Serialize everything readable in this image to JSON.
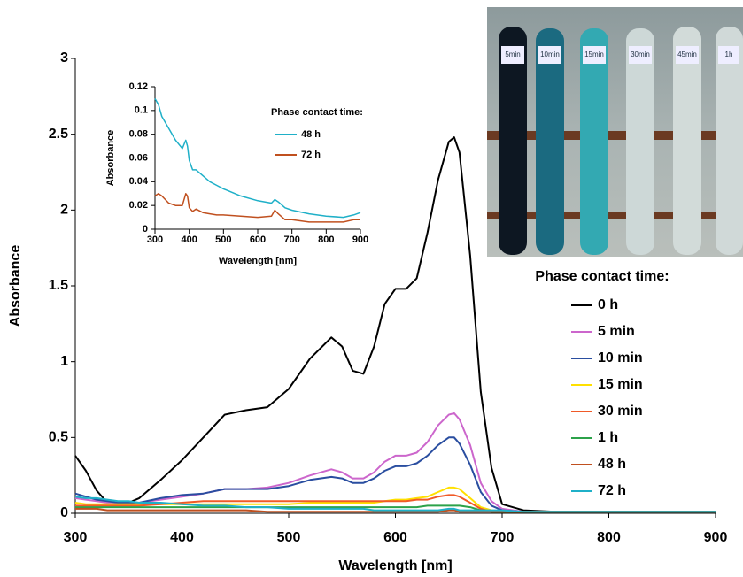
{
  "chart_data": [
    {
      "type": "line",
      "x_label": "Wavelength [nm]",
      "y_label": "Absorbance",
      "legend_title": "Phase contact time:",
      "x": [
        300,
        310,
        320,
        330,
        340,
        350,
        360,
        380,
        400,
        420,
        440,
        460,
        480,
        500,
        520,
        540,
        550,
        560,
        570,
        580,
        590,
        600,
        610,
        620,
        630,
        640,
        650,
        655,
        660,
        670,
        680,
        690,
        700,
        720,
        750,
        800,
        850,
        900
      ],
      "xlim": [
        300,
        900
      ],
      "xticks": [
        300,
        400,
        500,
        600,
        700,
        800,
        900
      ],
      "ylim": [
        0,
        3
      ],
      "yticks": [
        0,
        0.5,
        1,
        1.5,
        2,
        2.5,
        3
      ],
      "series": [
        {
          "name": "0 h",
          "color": "#000000",
          "values": [
            0.38,
            0.28,
            0.15,
            0.07,
            0.06,
            0.07,
            0.1,
            0.22,
            0.35,
            0.5,
            0.65,
            0.68,
            0.7,
            0.82,
            1.02,
            1.16,
            1.1,
            0.94,
            0.92,
            1.1,
            1.38,
            1.48,
            1.48,
            1.55,
            1.85,
            2.2,
            2.45,
            2.48,
            2.38,
            1.7,
            0.8,
            0.3,
            0.06,
            0.02,
            0.01,
            0.01,
            0.01,
            0.01
          ]
        },
        {
          "name": "5 min",
          "color": "#cc66cc",
          "values": [
            0.1,
            0.09,
            0.08,
            0.07,
            0.07,
            0.07,
            0.07,
            0.09,
            0.11,
            0.13,
            0.16,
            0.16,
            0.17,
            0.2,
            0.25,
            0.29,
            0.27,
            0.23,
            0.23,
            0.27,
            0.34,
            0.38,
            0.38,
            0.4,
            0.47,
            0.58,
            0.65,
            0.66,
            0.62,
            0.45,
            0.2,
            0.08,
            0.03,
            0.01,
            0.01,
            0.01,
            0.01,
            0.01
          ]
        },
        {
          "name": "10 min",
          "color": "#2a4ea0",
          "values": [
            0.13,
            0.11,
            0.09,
            0.08,
            0.07,
            0.07,
            0.07,
            0.1,
            0.12,
            0.13,
            0.16,
            0.16,
            0.16,
            0.18,
            0.22,
            0.24,
            0.23,
            0.2,
            0.2,
            0.23,
            0.28,
            0.31,
            0.31,
            0.33,
            0.38,
            0.45,
            0.5,
            0.5,
            0.46,
            0.32,
            0.14,
            0.05,
            0.02,
            0.01,
            0.01,
            0.01,
            0.01,
            0.01
          ]
        },
        {
          "name": "15 min",
          "color": "#ffe000",
          "values": [
            0.07,
            0.06,
            0.06,
            0.06,
            0.06,
            0.06,
            0.06,
            0.06,
            0.06,
            0.06,
            0.06,
            0.06,
            0.06,
            0.06,
            0.07,
            0.07,
            0.07,
            0.07,
            0.07,
            0.07,
            0.08,
            0.09,
            0.09,
            0.1,
            0.11,
            0.14,
            0.17,
            0.17,
            0.16,
            0.1,
            0.04,
            0.02,
            0.01,
            0.01,
            0.01,
            0.01,
            0.01,
            0.01
          ]
        },
        {
          "name": "30 min",
          "color": "#f05a28",
          "values": [
            0.05,
            0.05,
            0.05,
            0.05,
            0.05,
            0.05,
            0.05,
            0.06,
            0.07,
            0.08,
            0.08,
            0.08,
            0.08,
            0.08,
            0.08,
            0.08,
            0.08,
            0.08,
            0.08,
            0.08,
            0.08,
            0.08,
            0.08,
            0.09,
            0.09,
            0.11,
            0.12,
            0.12,
            0.11,
            0.07,
            0.03,
            0.01,
            0.01,
            0.01,
            0.01,
            0.01,
            0.01,
            0.01
          ]
        },
        {
          "name": "1 h",
          "color": "#2ca24a",
          "values": [
            0.04,
            0.04,
            0.04,
            0.04,
            0.04,
            0.04,
            0.04,
            0.04,
            0.04,
            0.04,
            0.04,
            0.04,
            0.04,
            0.04,
            0.04,
            0.04,
            0.04,
            0.04,
            0.04,
            0.04,
            0.04,
            0.04,
            0.04,
            0.04,
            0.05,
            0.05,
            0.05,
            0.05,
            0.05,
            0.04,
            0.02,
            0.01,
            0.01,
            0.01,
            0.01,
            0.01,
            0.01,
            0.01
          ]
        },
        {
          "name": "48 h",
          "color": "#c0501f",
          "values": [
            0.03,
            0.03,
            0.03,
            0.02,
            0.02,
            0.02,
            0.02,
            0.02,
            0.02,
            0.02,
            0.02,
            0.02,
            0.01,
            0.01,
            0.01,
            0.01,
            0.01,
            0.01,
            0.01,
            0.01,
            0.01,
            0.01,
            0.01,
            0.01,
            0.01,
            0.01,
            0.02,
            0.02,
            0.01,
            0.01,
            0.01,
            0.01,
            0.01,
            0.01,
            0.01,
            0.01,
            0.01,
            0.01
          ]
        },
        {
          "name": "72 h",
          "color": "#1fb0c8",
          "values": [
            0.11,
            0.1,
            0.1,
            0.09,
            0.08,
            0.08,
            0.07,
            0.07,
            0.06,
            0.05,
            0.05,
            0.04,
            0.04,
            0.03,
            0.03,
            0.03,
            0.03,
            0.03,
            0.03,
            0.02,
            0.02,
            0.02,
            0.02,
            0.02,
            0.02,
            0.02,
            0.03,
            0.03,
            0.02,
            0.02,
            0.02,
            0.02,
            0.02,
            0.01,
            0.01,
            0.01,
            0.01,
            0.01
          ]
        }
      ]
    },
    {
      "type": "line",
      "x_label": "Wavelength [nm]",
      "y_label": "Absorbance",
      "legend_title": "Phase contact time:",
      "x": [
        300,
        310,
        320,
        340,
        360,
        380,
        390,
        395,
        400,
        410,
        420,
        440,
        460,
        480,
        500,
        550,
        600,
        640,
        650,
        660,
        680,
        700,
        750,
        800,
        850,
        880,
        900
      ],
      "xlim": [
        300,
        900
      ],
      "xticks": [
        300,
        400,
        500,
        600,
        700,
        800,
        900
      ],
      "ylim": [
        0,
        0.12
      ],
      "yticks": [
        0,
        0.02,
        0.04,
        0.06,
        0.08,
        0.1,
        0.12
      ],
      "series": [
        {
          "name": "48 h",
          "color": "#1fb0c8",
          "values": [
            0.11,
            0.105,
            0.095,
            0.085,
            0.075,
            0.068,
            0.075,
            0.07,
            0.058,
            0.05,
            0.05,
            0.045,
            0.04,
            0.037,
            0.034,
            0.028,
            0.024,
            0.022,
            0.025,
            0.023,
            0.018,
            0.016,
            0.013,
            0.011,
            0.01,
            0.012,
            0.014
          ]
        },
        {
          "name": "72 h",
          "color": "#c0501f",
          "values": [
            0.028,
            0.03,
            0.028,
            0.022,
            0.02,
            0.02,
            0.03,
            0.028,
            0.018,
            0.015,
            0.017,
            0.014,
            0.013,
            0.012,
            0.012,
            0.011,
            0.01,
            0.011,
            0.016,
            0.013,
            0.008,
            0.008,
            0.006,
            0.006,
            0.006,
            0.008,
            0.008
          ]
        }
      ]
    }
  ],
  "photo": {
    "tube_labels": [
      "5min",
      "10min",
      "15min",
      "30min",
      "45min",
      "1h"
    ]
  }
}
